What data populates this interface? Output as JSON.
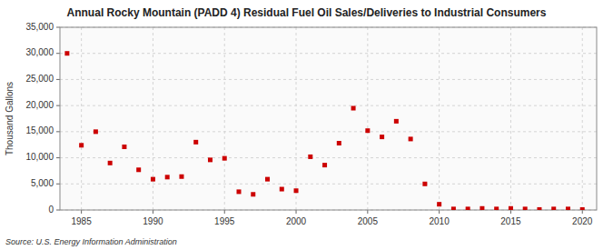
{
  "chart_data": {
    "type": "scatter",
    "title": "Annual Rocky Mountain (PADD 4) Residual Fuel Oil Sales/Deliveries to Industrial Consumers",
    "ylabel": "Thousand Gallons",
    "source": "Source: U.S. Energy Information Administration",
    "x": [
      1984,
      1985,
      1986,
      1987,
      1988,
      1989,
      1990,
      1991,
      1992,
      1993,
      1994,
      1995,
      1996,
      1997,
      1998,
      1999,
      2000,
      2001,
      2002,
      2003,
      2004,
      2005,
      2006,
      2007,
      2008,
      2009,
      2010,
      2011,
      2012,
      2013,
      2014,
      2015,
      2016,
      2017,
      2018,
      2019,
      2020
    ],
    "values": [
      30000,
      12400,
      15000,
      9000,
      12100,
      7700,
      5900,
      6300,
      6400,
      13000,
      9600,
      9900,
      3500,
      3000,
      5900,
      4000,
      3700,
      10200,
      8600,
      12800,
      19500,
      15200,
      14000,
      17000,
      13600,
      5000,
      1100,
      200,
      200,
      300,
      200,
      300,
      200,
      100,
      200,
      200,
      100
    ],
    "color": "#cc0000",
    "marker": "square",
    "grid": true,
    "xlim": [
      1983.5,
      2021
    ],
    "ylim": [
      0,
      35000
    ],
    "xticks": [
      1985,
      1990,
      1995,
      2000,
      2005,
      2010,
      2015,
      2020
    ],
    "yticks": [
      0,
      {
        "value": 5000,
        "label": "5,000"
      },
      {
        "value": 10000,
        "label": "10,000"
      },
      {
        "value": 15000,
        "label": "15,000"
      },
      {
        "value": 20000,
        "label": "20,000"
      },
      {
        "value": 25000,
        "label": "25,000"
      },
      {
        "value": 30000,
        "label": "30,000"
      },
      {
        "value": 35000,
        "label": "35,000"
      }
    ]
  }
}
